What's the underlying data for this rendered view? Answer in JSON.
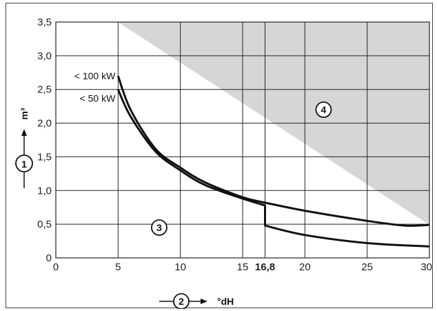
{
  "chart_data": {
    "type": "area",
    "x_range": [
      0,
      30
    ],
    "y_range": [
      0,
      3.5
    ],
    "x_ticks": [
      0,
      5,
      10,
      15,
      16.8,
      20,
      25,
      30
    ],
    "x_tick_labels": [
      "0",
      "5",
      "10",
      "15",
      "16,8",
      "20",
      "25",
      "30"
    ],
    "x_tick_label_bold": [
      false,
      false,
      false,
      false,
      true,
      false,
      false,
      false
    ],
    "y_ticks": [
      0,
      0.5,
      1.0,
      1.5,
      2.0,
      2.5,
      3.0,
      3.5
    ],
    "y_tick_labels": [
      "0",
      "0,5",
      "1,0",
      "1,5",
      "2,0",
      "2,5",
      "3,0",
      "3,5"
    ],
    "x_unit": "°dH",
    "y_unit": "m³",
    "x_axis_marker": "2",
    "y_axis_marker": "1",
    "series": [
      {
        "name": "< 100 kW",
        "points": [
          [
            5,
            2.7
          ],
          [
            6,
            2.2
          ],
          [
            8,
            1.62
          ],
          [
            10,
            1.34
          ],
          [
            12,
            1.12
          ],
          [
            15,
            0.9
          ],
          [
            16.8,
            0.82
          ],
          [
            16.8,
            0.82
          ],
          [
            20,
            0.7
          ],
          [
            25,
            0.55
          ],
          [
            28,
            0.48
          ],
          [
            30,
            0.49
          ]
        ]
      },
      {
        "name": "< 50 kW",
        "points": [
          [
            5,
            2.5
          ],
          [
            6,
            2.1
          ],
          [
            8,
            1.58
          ],
          [
            10,
            1.3
          ],
          [
            12,
            1.08
          ],
          [
            15,
            0.88
          ],
          [
            16.8,
            0.78
          ],
          [
            16.8,
            0.48
          ],
          [
            20,
            0.34
          ],
          [
            25,
            0.22
          ],
          [
            30,
            0.17
          ]
        ]
      }
    ],
    "regions": [
      {
        "label": "3",
        "x": 8.3,
        "y": 0.45
      },
      {
        "label": "4",
        "x": 21.5,
        "y": 2.2
      }
    ],
    "colors": {
      "region_upper": "#d6d6d6",
      "region_lower": "#a6a6a6",
      "band": "#ffffff",
      "grid": "#222222"
    }
  }
}
